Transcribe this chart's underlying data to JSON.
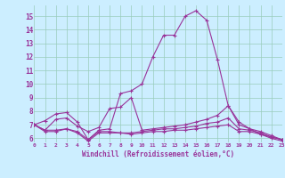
{
  "x": [
    0,
    1,
    2,
    3,
    4,
    5,
    6,
    7,
    8,
    9,
    10,
    11,
    12,
    13,
    14,
    15,
    16,
    17,
    18,
    19,
    20,
    21,
    22,
    23
  ],
  "line1": [
    7.0,
    7.3,
    7.8,
    7.9,
    7.2,
    5.9,
    6.6,
    6.7,
    9.3,
    9.5,
    10.0,
    12.0,
    13.6,
    13.6,
    15.0,
    15.4,
    14.7,
    11.8,
    8.4,
    7.0,
    6.7,
    6.3,
    6.1,
    5.9
  ],
  "line2": [
    7.0,
    6.6,
    7.4,
    7.5,
    6.9,
    6.5,
    6.8,
    8.2,
    8.3,
    9.0,
    6.6,
    6.7,
    6.8,
    6.9,
    7.0,
    7.2,
    7.4,
    7.7,
    8.4,
    7.2,
    6.7,
    6.5,
    6.2,
    5.9
  ],
  "line3": [
    7.0,
    6.6,
    6.6,
    6.7,
    6.5,
    5.9,
    6.5,
    6.5,
    6.4,
    6.4,
    6.5,
    6.6,
    6.7,
    6.7,
    6.8,
    6.9,
    7.1,
    7.2,
    7.5,
    6.7,
    6.6,
    6.4,
    6.1,
    5.9
  ],
  "line4": [
    7.0,
    6.5,
    6.5,
    6.7,
    6.4,
    5.8,
    6.4,
    6.4,
    6.4,
    6.3,
    6.4,
    6.5,
    6.5,
    6.6,
    6.6,
    6.7,
    6.8,
    6.9,
    7.0,
    6.5,
    6.5,
    6.3,
    6.0,
    5.8
  ],
  "line_color": "#993399",
  "bg_color": "#cceeff",
  "grid_color": "#99ccbb",
  "xlabel": "Windchill (Refroidissement éolien,°C)",
  "xlim": [
    0,
    23
  ],
  "ylim": [
    5.7,
    15.8
  ],
  "yticks": [
    6,
    7,
    8,
    9,
    10,
    11,
    12,
    13,
    14,
    15
  ],
  "xticks": [
    0,
    1,
    2,
    3,
    4,
    5,
    6,
    7,
    8,
    9,
    10,
    11,
    12,
    13,
    14,
    15,
    16,
    17,
    18,
    19,
    20,
    21,
    22,
    23
  ]
}
